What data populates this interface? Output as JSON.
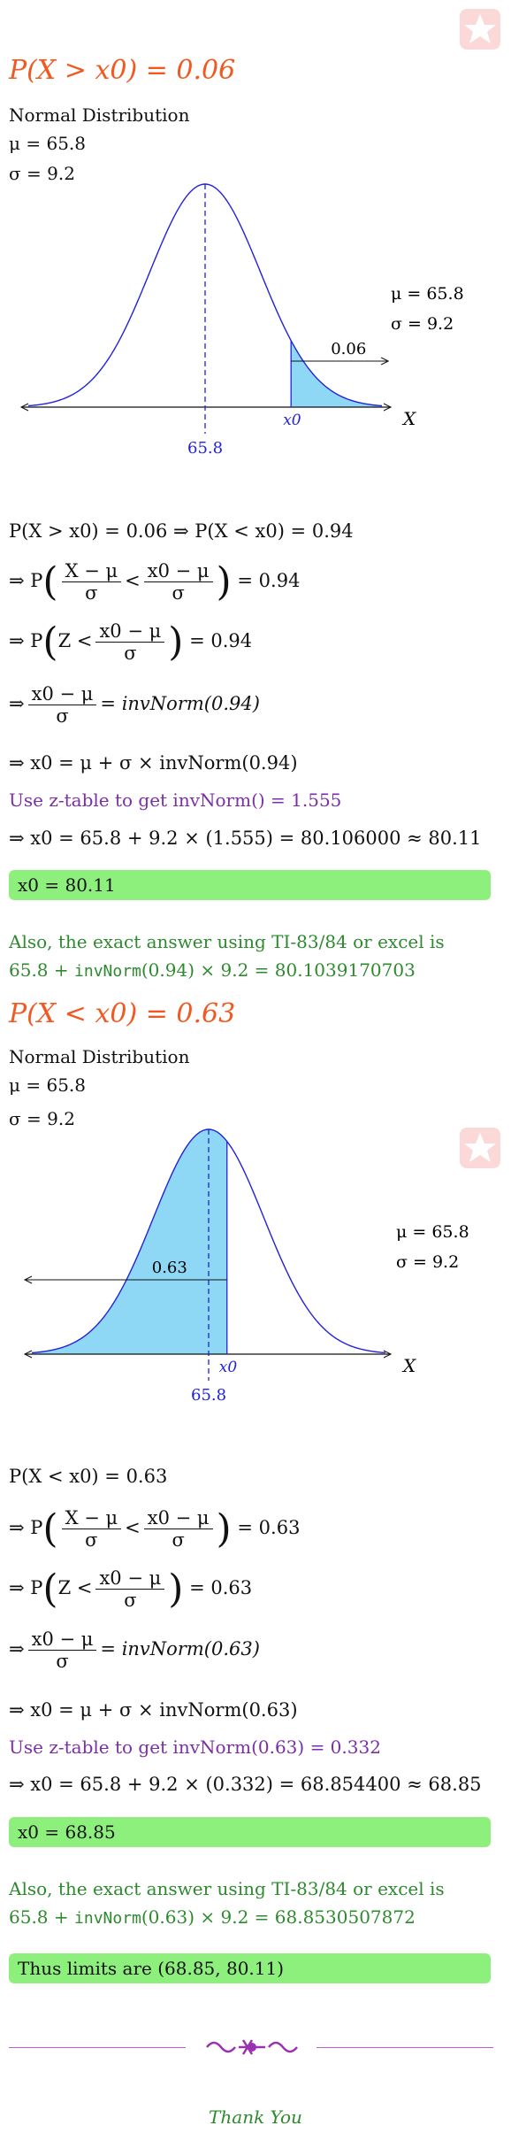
{
  "part1": {
    "title": "P(X > x0) = 0.06",
    "dist_label": "Normal Distribution",
    "mu_line": "μ = 65.8",
    "sigma_line": "σ = 9.2",
    "chart": {
      "type": "area",
      "mean": 65.8,
      "sd": 9.2,
      "shaded_tail": "right",
      "area_label": "0.06",
      "xaxis_label": "X",
      "x0_label": "x0",
      "mean_label": "65.8",
      "legend_mu": "μ = 65.8",
      "legend_sigma": "σ = 9.2"
    },
    "steps": {
      "s1": "P(X > x0) = 0.06 ⇒ P(X < x0) = 0.94",
      "s2_result": "= 0.94",
      "s3_result": "= 0.94",
      "s4_rhs": "= invNorm(0.94)",
      "s5": "⇒ x0 = μ + σ × invNorm(0.94)",
      "ztable": "Use z-table to get invNorm() = 1.555",
      "s6": "⇒ x0 = 65.8 + 9.2 × (1.555) = 80.106000 ≈ 80.11",
      "answer": "x0 = 80.11",
      "also": "Also, the exact answer using TI-83/84 or excel is",
      "exact_pre": "65.8 + ",
      "exact_func": "invNorm",
      "exact_post": "(0.94) × 9.2 = 80.1039170703"
    }
  },
  "part2": {
    "title": "P(X < x0) = 0.63",
    "dist_label": "Normal Distribution",
    "mu_line": "μ = 65.8",
    "sigma_line": "σ = 9.2",
    "chart": {
      "type": "area",
      "mean": 65.8,
      "sd": 9.2,
      "shaded_tail": "left",
      "area_label": "0.63",
      "xaxis_label": "X",
      "x0_label": "x0",
      "mean_label": "65.8",
      "legend_mu": "μ = 65.8",
      "legend_sigma": "σ = 9.2"
    },
    "steps": {
      "s1": "P(X < x0) = 0.63",
      "s2_result": "= 0.63",
      "s3_result": "= 0.63",
      "s4_rhs": "= invNorm(0.63)",
      "s5": "⇒ x0 = μ + σ × invNorm(0.63)",
      "ztable": "Use z-table to get invNorm(0.63) = 0.332",
      "s6": "⇒ x0 = 65.8 + 9.2 × (0.332) = 68.854400 ≈ 68.85",
      "answer": "x0 = 68.85",
      "also": "Also, the exact answer using TI-83/84 or excel is",
      "exact_pre": "65.8 + ",
      "exact_func": "invNorm",
      "exact_post": "(0.63) × 9.2 = 68.8530507872"
    }
  },
  "limits": "Thus limits are (68.85, 80.11)",
  "thank_you": "Thank You",
  "common": {
    "implies": "⇒ P",
    "implies_plain": "⇒",
    "frac_num": "X − μ",
    "frac_num2": "x0 − μ",
    "frac_den": "σ",
    "less": "<",
    "z_prefix": "Z <"
  },
  "colors": {
    "curve": "#2222dd",
    "fill": "#8fd8f5",
    "title": "#f05a22",
    "answer_bg": "#8ef07c",
    "text_green": "#2e8a2e",
    "text_purple": "#7b2fa6"
  }
}
